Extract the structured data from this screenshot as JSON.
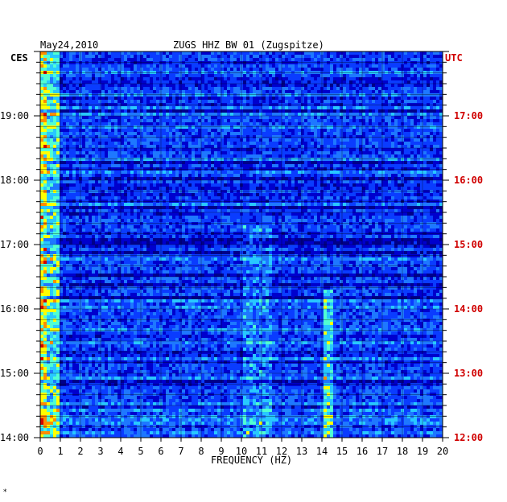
{
  "header": {
    "date": "May24,2010",
    "station": "ZUGS HHZ BW 01 (Zugspitze)"
  },
  "left_axis_label": "CES",
  "right_axis_label": "UTC",
  "corner_mark": "*",
  "chart_data": {
    "type": "heatmap",
    "title": "ZUGS HHZ BW 01 (Zugspitze)",
    "xlabel": "FREQUENCY (HZ)",
    "xlim": [
      0,
      20
    ],
    "x_ticks": [
      "0",
      "1",
      "2",
      "3",
      "4",
      "5",
      "6",
      "7",
      "8",
      "9",
      "10",
      "11",
      "12",
      "13",
      "14",
      "15",
      "16",
      "17",
      "18",
      "19",
      "20"
    ],
    "y_left_ticks": [
      "14:00",
      "15:00",
      "16:00",
      "17:00",
      "18:00",
      "19:00"
    ],
    "y_right_ticks": [
      "12:00",
      "13:00",
      "14:00",
      "15:00",
      "16:00",
      "17:00"
    ],
    "ylim_hours_local": [
      14.0,
      20.0
    ],
    "colormap": [
      "#00008b",
      "#0000cd",
      "#0a3cff",
      "#1e78ff",
      "#28c8ff",
      "#50ffd2",
      "#ffff00",
      "#ff8c00",
      "#d20000"
    ],
    "grid": true,
    "features": [
      {
        "freq_hz": [
          0.0,
          1.0
        ],
        "note": "strong low-frequency energy throughout"
      },
      {
        "freq_hz": [
          10.0,
          11.5
        ],
        "note": "recurring band of elevated energy"
      },
      {
        "freq_hz": [
          14.0,
          14.6
        ],
        "note": "narrow spectral line, 14:00-16:20"
      }
    ]
  }
}
